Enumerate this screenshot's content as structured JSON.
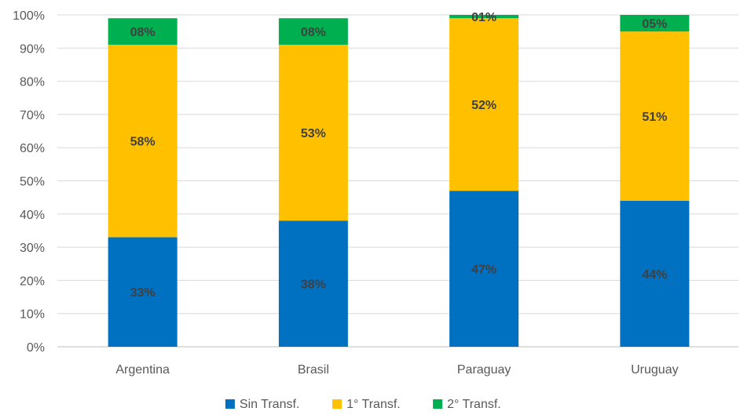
{
  "chart_data": {
    "type": "bar",
    "stacked": true,
    "categories": [
      "Argentina",
      "Brasil",
      "Paraguay",
      "Uruguay"
    ],
    "series": [
      {
        "name": "Sin Transf.",
        "color": "#0070C0",
        "values": [
          33,
          38,
          47,
          44
        ],
        "labels": [
          "33%",
          "38%",
          "47%",
          "44%"
        ]
      },
      {
        "name": "1° Transf.",
        "color": "#FFC000",
        "values": [
          58,
          53,
          52,
          51
        ],
        "labels": [
          "58%",
          "53%",
          "52%",
          "51%"
        ]
      },
      {
        "name": "2° Transf.",
        "color": "#00B050",
        "values": [
          8,
          8,
          1,
          5
        ],
        "labels": [
          "08%",
          "08%",
          "01%",
          "05%"
        ]
      }
    ],
    "ylim": [
      0,
      100
    ],
    "yticks": [
      "0%",
      "10%",
      "20%",
      "30%",
      "40%",
      "50%",
      "60%",
      "70%",
      "80%",
      "90%",
      "100%"
    ],
    "grid": true,
    "legend": "bottom",
    "title": "",
    "xlabel": "",
    "ylabel": ""
  }
}
